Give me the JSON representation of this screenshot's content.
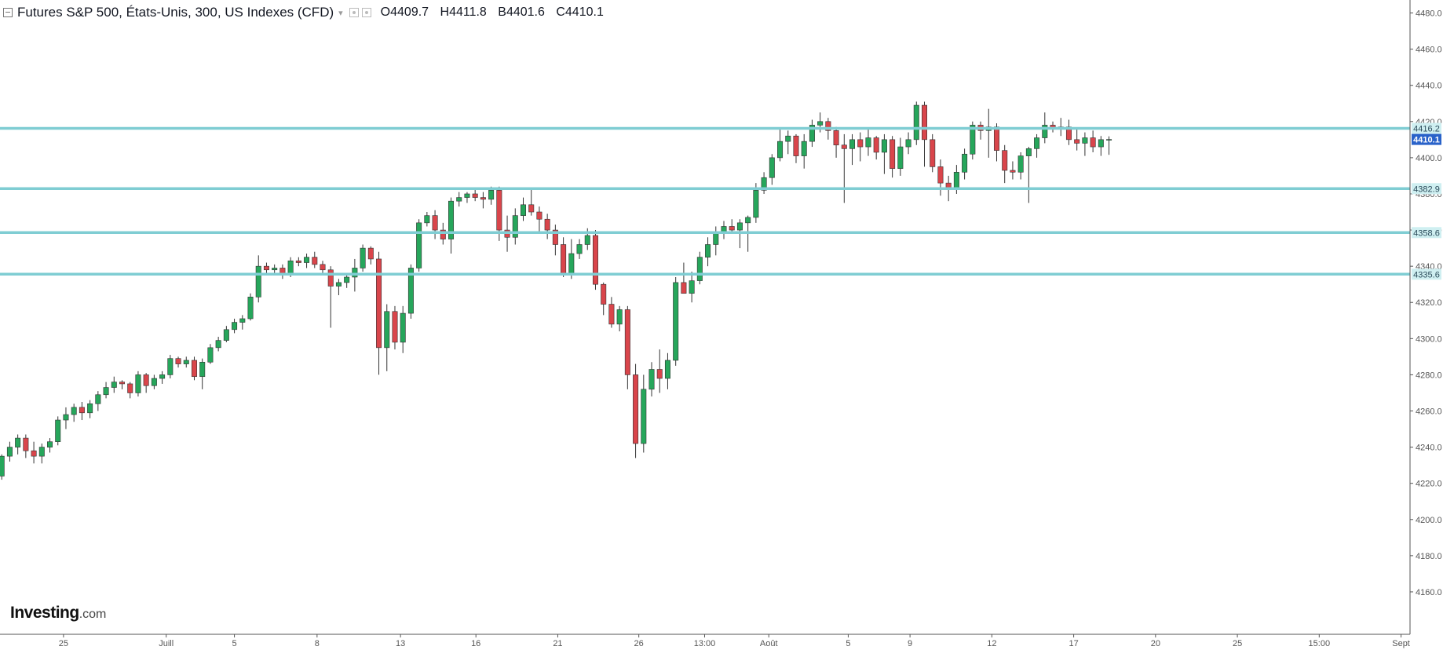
{
  "header": {
    "title": "Futures S&P 500, États-Unis, 300, US Indexes (CFD)",
    "open_label": "O",
    "open": "4409.7",
    "high_label": "H",
    "high": "4411.8",
    "low_label": "B",
    "low": "4401.6",
    "close_label": "C",
    "close": "4410.1"
  },
  "branding": {
    "logo_main": "Investing",
    "logo_suffix": ".com"
  },
  "colors": {
    "up": "#26a65b",
    "down": "#d9454b",
    "wick": "#333333",
    "support_line": "#7fcdd3",
    "support_label_bg": "#cfeff1",
    "last_price_bg": "#2962c9",
    "axis": "#555555",
    "tick_text": "#555555"
  },
  "chart_data": {
    "type": "candlestick",
    "title": "Futures S&P 500, États-Unis, 300, US Indexes (CFD)",
    "ylim": [
      4150,
      4485
    ],
    "y_ticks": [
      "4160.0",
      "4180.0",
      "4200.0",
      "4220.0",
      "4240.0",
      "4260.0",
      "4280.0",
      "4300.0",
      "4320.0",
      "4340.0",
      "4360.0",
      "4380.0",
      "4400.0",
      "4420.0",
      "4440.0",
      "4460.0",
      "4480.0"
    ],
    "x_ticks": [
      {
        "label": "25",
        "bar": 7.7
      },
      {
        "label": "Juill",
        "bar": 20.5
      },
      {
        "label": "5",
        "bar": 29
      },
      {
        "label": "8",
        "bar": 39.3
      },
      {
        "label": "13",
        "bar": 49.7
      },
      {
        "label": "16",
        "bar": 59.1
      },
      {
        "label": "21",
        "bar": 69.3
      },
      {
        "label": "26",
        "bar": 79.4
      },
      {
        "label": "13:00",
        "bar": 87.6
      },
      {
        "label": "Août",
        "bar": 95.6
      },
      {
        "label": "5",
        "bar": 105.5
      },
      {
        "label": "9",
        "bar": 113.2
      },
      {
        "label": "12",
        "bar": 123.4
      },
      {
        "label": "17",
        "bar": 133.6
      },
      {
        "label": "20",
        "bar": 143.8
      },
      {
        "label": "25",
        "bar": 154
      },
      {
        "label": "15:00",
        "bar": 164.2
      },
      {
        "label": "Sept",
        "bar": 174.4
      }
    ],
    "horizontal_lines": [
      4416.2,
      4382.9,
      4358.6,
      4335.6
    ],
    "horizontal_line_labels": [
      "4416.2",
      "4382.9",
      "4358.6",
      "4335.6"
    ],
    "last_price": 4410.1,
    "last_price_label": "4410.1",
    "candles": [
      [
        4224,
        4236,
        4222,
        4235
      ],
      [
        4235,
        4243,
        4232,
        4240
      ],
      [
        4240,
        4247,
        4236,
        4245
      ],
      [
        4245,
        4247,
        4234,
        4238
      ],
      [
        4238,
        4243,
        4231,
        4235
      ],
      [
        4235,
        4242,
        4231,
        4240
      ],
      [
        4240,
        4245,
        4237,
        4243
      ],
      [
        4243,
        4257,
        4241,
        4255
      ],
      [
        4255,
        4262,
        4250,
        4258
      ],
      [
        4258,
        4264,
        4254,
        4262
      ],
      [
        4262,
        4265,
        4255,
        4259
      ],
      [
        4259,
        4266,
        4256,
        4264
      ],
      [
        4264,
        4271,
        4260,
        4269
      ],
      [
        4269,
        4276,
        4267,
        4273
      ],
      [
        4273,
        4279,
        4270,
        4276
      ],
      [
        4276,
        4277,
        4272,
        4275
      ],
      [
        4275,
        4276,
        4267,
        4270
      ],
      [
        4270,
        4282,
        4268,
        4280
      ],
      [
        4280,
        4281,
        4270,
        4274
      ],
      [
        4274,
        4280,
        4272,
        4278
      ],
      [
        4278,
        4282,
        4275,
        4280
      ],
      [
        4280,
        4291,
        4278,
        4289
      ],
      [
        4289,
        4290,
        4284,
        4286
      ],
      [
        4286,
        4290,
        4284,
        4288
      ],
      [
        4288,
        4290,
        4277,
        4279
      ],
      [
        4279,
        4289,
        4272,
        4287
      ],
      [
        4287,
        4297,
        4286,
        4295
      ],
      [
        4295,
        4301,
        4293,
        4299
      ],
      [
        4299,
        4307,
        4298,
        4305
      ],
      [
        4305,
        4311,
        4303,
        4309
      ],
      [
        4309,
        4313,
        4305,
        4311
      ],
      [
        4311,
        4325,
        4310,
        4323
      ],
      [
        4323,
        4346,
        4320,
        4340
      ],
      [
        4340,
        4342,
        4336,
        4338
      ],
      [
        4338,
        4341,
        4335,
        4339
      ],
      [
        4339,
        4341,
        4333,
        4336
      ],
      [
        4336,
        4345,
        4334,
        4343
      ],
      [
        4343,
        4345,
        4340,
        4342
      ],
      [
        4342,
        4347,
        4339,
        4345
      ],
      [
        4345,
        4348,
        4339,
        4341
      ],
      [
        4341,
        4343,
        4336,
        4338
      ],
      [
        4338,
        4340,
        4306,
        4329
      ],
      [
        4329,
        4333,
        4324,
        4331
      ],
      [
        4331,
        4336,
        4328,
        4334
      ],
      [
        4334,
        4344,
        4326,
        4339
      ],
      [
        4339,
        4352,
        4337,
        4350
      ],
      [
        4350,
        4351,
        4341,
        4344
      ],
      [
        4344,
        4348,
        4280,
        4295
      ],
      [
        4295,
        4319,
        4282,
        4315
      ],
      [
        4315,
        4318,
        4294,
        4298
      ],
      [
        4298,
        4318,
        4292,
        4314
      ],
      [
        4314,
        4341,
        4311,
        4339
      ],
      [
        4339,
        4366,
        4337,
        4364
      ],
      [
        4364,
        4370,
        4362,
        4368
      ],
      [
        4368,
        4371,
        4355,
        4360
      ],
      [
        4360,
        4364,
        4352,
        4355
      ],
      [
        4355,
        4378,
        4347,
        4376
      ],
      [
        4376,
        4381,
        4373,
        4378
      ],
      [
        4378,
        4381,
        4375,
        4380
      ],
      [
        4380,
        4383,
        4376,
        4378
      ],
      [
        4378,
        4381,
        4372,
        4377
      ],
      [
        4377,
        4384,
        4374,
        4382
      ],
      [
        4382,
        4384,
        4354,
        4360
      ],
      [
        4360,
        4368,
        4348,
        4356
      ],
      [
        4356,
        4372,
        4352,
        4368
      ],
      [
        4368,
        4378,
        4365,
        4374
      ],
      [
        4374,
        4383,
        4368,
        4370
      ],
      [
        4370,
        4373,
        4358,
        4366
      ],
      [
        4366,
        4369,
        4355,
        4360
      ],
      [
        4360,
        4363,
        4346,
        4352
      ],
      [
        4352,
        4356,
        4334,
        4336
      ],
      [
        4336,
        4355,
        4333,
        4347
      ],
      [
        4347,
        4355,
        4344,
        4352
      ],
      [
        4352,
        4361,
        4349,
        4357
      ],
      [
        4357,
        4360,
        4327,
        4330
      ],
      [
        4330,
        4331,
        4313,
        4319
      ],
      [
        4319,
        4323,
        4306,
        4308
      ],
      [
        4308,
        4318,
        4304,
        4316
      ],
      [
        4316,
        4318,
        4272,
        4280
      ],
      [
        4280,
        4286,
        4234,
        4242
      ],
      [
        4242,
        4280,
        4237,
        4272
      ],
      [
        4272,
        4287,
        4268,
        4283
      ],
      [
        4283,
        4294,
        4270,
        4278
      ],
      [
        4278,
        4292,
        4272,
        4288
      ],
      [
        4288,
        4334,
        4285,
        4331
      ],
      [
        4331,
        4342,
        4328,
        4325
      ],
      [
        4325,
        4337,
        4320,
        4332
      ],
      [
        4332,
        4348,
        4330,
        4345
      ],
      [
        4345,
        4356,
        4340,
        4352
      ],
      [
        4352,
        4362,
        4346,
        4358
      ],
      [
        4358,
        4365,
        4355,
        4362
      ],
      [
        4362,
        4366,
        4358,
        4360
      ],
      [
        4360,
        4366,
        4350,
        4364
      ],
      [
        4364,
        4368,
        4348,
        4367
      ],
      [
        4367,
        4386,
        4364,
        4382
      ],
      [
        4382,
        4392,
        4380,
        4389
      ],
      [
        4389,
        4402,
        4385,
        4400
      ],
      [
        4400,
        4416,
        4398,
        4409
      ],
      [
        4409,
        4415,
        4402,
        4412
      ],
      [
        4412,
        4413,
        4397,
        4401
      ],
      [
        4401,
        4413,
        4394,
        4409
      ],
      [
        4409,
        4421,
        4406,
        4418
      ],
      [
        4418,
        4425,
        4414,
        4420
      ],
      [
        4420,
        4422,
        4410,
        4415
      ],
      [
        4415,
        4417,
        4400,
        4407
      ],
      [
        4407,
        4413,
        4375,
        4405
      ],
      [
        4405,
        4413,
        4396,
        4410
      ],
      [
        4410,
        4414,
        4398,
        4406
      ],
      [
        4406,
        4416,
        4401,
        4411
      ],
      [
        4411,
        4412,
        4399,
        4403
      ],
      [
        4403,
        4413,
        4391,
        4410
      ],
      [
        4410,
        4412,
        4389,
        4394
      ],
      [
        4394,
        4411,
        4390,
        4406
      ],
      [
        4406,
        4414,
        4402,
        4410
      ],
      [
        4410,
        4431,
        4407,
        4429
      ],
      [
        4429,
        4431,
        4395,
        4410
      ],
      [
        4410,
        4413,
        4392,
        4395
      ],
      [
        4395,
        4399,
        4379,
        4386
      ],
      [
        4386,
        4390,
        4376,
        4383
      ],
      [
        4383,
        4396,
        4380,
        4392
      ],
      [
        4392,
        4405,
        4388,
        4402
      ],
      [
        4402,
        4420,
        4399,
        4418
      ],
      [
        4418,
        4420,
        4410,
        4415
      ],
      [
        4415,
        4427,
        4400,
        4417
      ],
      [
        4417,
        4419,
        4398,
        4404
      ],
      [
        4404,
        4407,
        4386,
        4393
      ],
      [
        4393,
        4398,
        4388,
        4392
      ],
      [
        4392,
        4403,
        4388,
        4401
      ],
      [
        4401,
        4406,
        4375,
        4405
      ],
      [
        4405,
        4413,
        4400,
        4411
      ],
      [
        4411,
        4425,
        4408,
        4418
      ],
      [
        4418,
        4420,
        4414,
        4416
      ],
      [
        4416,
        4422,
        4412,
        4417
      ],
      [
        4417,
        4421,
        4407,
        4410
      ],
      [
        4410,
        4416,
        4404,
        4408
      ],
      [
        4408,
        4414,
        4401,
        4411
      ],
      [
        4411,
        4415,
        4403,
        4406
      ],
      [
        4406,
        4412,
        4401,
        4410
      ],
      [
        4409.7,
        4411.8,
        4401.6,
        4410.1
      ]
    ]
  }
}
